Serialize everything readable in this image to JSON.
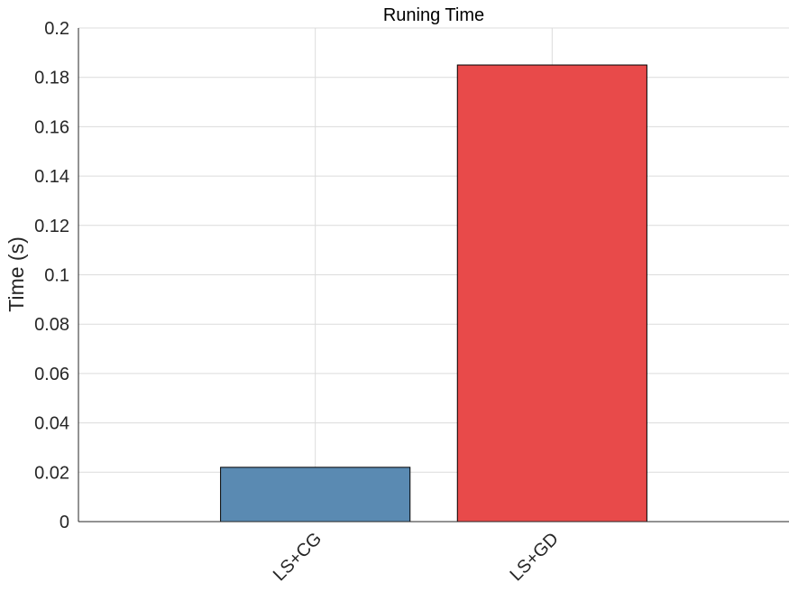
{
  "chart_data": {
    "type": "bar",
    "title": "Runing Time",
    "xlabel": "",
    "ylabel": "Time (s)",
    "categories": [
      "LS+CG",
      "LS+GD"
    ],
    "values": [
      0.022,
      0.185
    ],
    "bar_colors": [
      "#5a8ab2",
      "#e84a4a"
    ],
    "ylim": [
      0,
      0.2
    ],
    "yticks": [
      0,
      0.02,
      0.04,
      0.06,
      0.08,
      0.1,
      0.12,
      0.14,
      0.16,
      0.18,
      0.2
    ],
    "ytick_labels": [
      "0",
      "0.02",
      "0.04",
      "0.06",
      "0.08",
      "0.1",
      "0.12",
      "0.14",
      "0.16",
      "0.18",
      "0.2"
    ],
    "grid": true,
    "legend": "none"
  }
}
